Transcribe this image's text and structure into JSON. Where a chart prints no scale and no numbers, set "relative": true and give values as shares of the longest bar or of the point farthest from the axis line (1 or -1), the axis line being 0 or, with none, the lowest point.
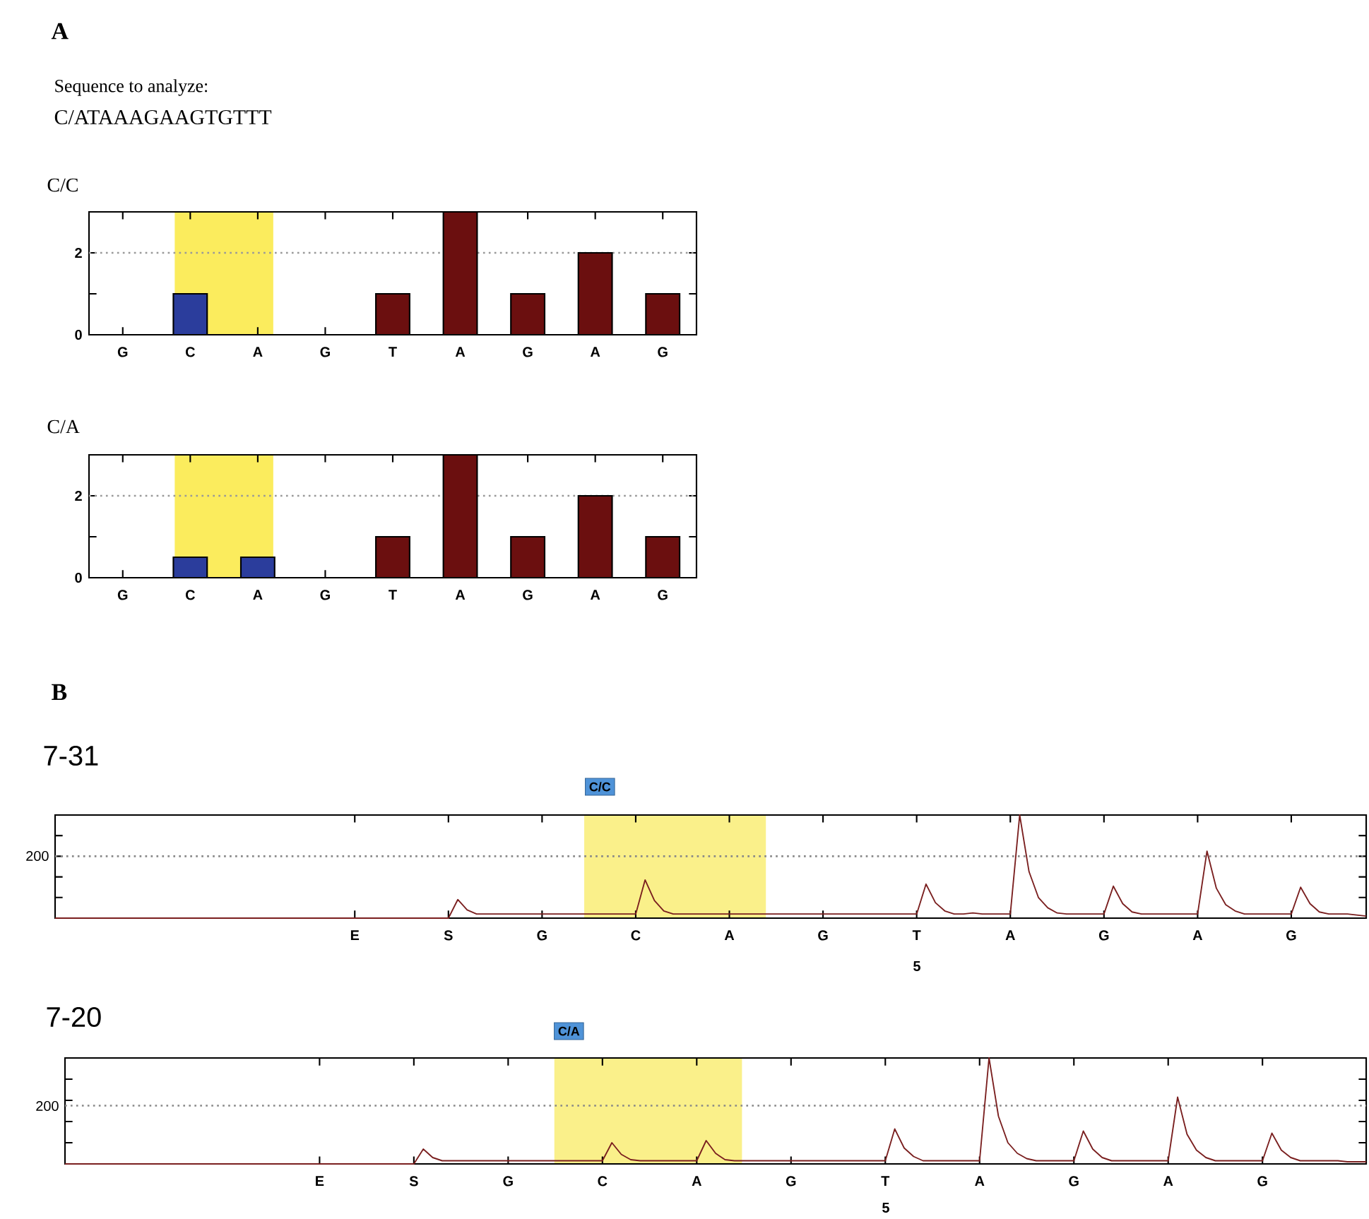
{
  "chart_data": [
    {
      "type": "bar",
      "title": "C/C",
      "annotations": [
        "A",
        "Sequence to analyze:",
        "C/ATAAAGAAGTGTTT"
      ],
      "categories": [
        "G",
        "C",
        "A",
        "G",
        "T",
        "A",
        "G",
        "A",
        "G"
      ],
      "values": [
        0,
        1,
        0,
        0,
        1,
        3,
        1,
        2,
        1
      ],
      "colors": [
        "#6b0f0f",
        "#2b3d9c",
        "#2b3d9c",
        "#6b0f0f",
        "#6b0f0f",
        "#6b0f0f",
        "#6b0f0f",
        "#6b0f0f",
        "#6b0f0f"
      ],
      "ylim": [
        0,
        3
      ],
      "yticks": [
        0,
        {
          "value": 1,
          "label": null
        },
        2
      ],
      "ref_lines": [
        {
          "axis": "y",
          "value": 2,
          "color": "#999999",
          "line_style": "dotted"
        }
      ]
    },
    {
      "type": "bar",
      "title": "C/A",
      "categories": [
        "G",
        "C",
        "A",
        "G",
        "T",
        "A",
        "G",
        "A",
        "G"
      ],
      "values": [
        0,
        0.5,
        0.5,
        0,
        1,
        3,
        1,
        2,
        1
      ],
      "colors": [
        "#6b0f0f",
        "#2b3d9c",
        "#2b3d9c",
        "#6b0f0f",
        "#6b0f0f",
        "#6b0f0f",
        "#6b0f0f",
        "#6b0f0f",
        "#6b0f0f"
      ],
      "ylim": [
        0,
        3
      ],
      "yticks": [
        0,
        {
          "value": 1,
          "label": null
        },
        2
      ],
      "ref_lines": [
        {
          "axis": "y",
          "value": 2,
          "color": "#999999",
          "line_style": "dotted"
        }
      ]
    },
    {
      "type": "line",
      "title": "7-31",
      "annotations": [
        "B",
        "C/C",
        "200",
        "5"
      ],
      "relative": true,
      "categories": [
        null,
        null,
        null,
        null,
        null,
        null,
        null,
        null,
        null,
        null,
        null,
        null,
        null,
        null,
        null,
        null,
        null,
        null,
        null,
        null,
        null,
        null,
        null,
        null,
        null,
        null,
        null,
        null,
        null,
        null,
        null,
        null,
        "E",
        null,
        null,
        null,
        null,
        null,
        null,
        null,
        null,
        null,
        "S",
        null,
        null,
        null,
        null,
        null,
        null,
        null,
        null,
        null,
        "G",
        null,
        null,
        null,
        null,
        null,
        null,
        null,
        null,
        null,
        "C",
        null,
        null,
        null,
        null,
        null,
        null,
        null,
        null,
        null,
        "A",
        null,
        null,
        null,
        null,
        null,
        null,
        null,
        null,
        null,
        "G",
        null,
        null,
        null,
        null,
        null,
        null,
        null,
        null,
        null,
        "T",
        null,
        null,
        null,
        null,
        null,
        null,
        null,
        null,
        null,
        "A",
        null,
        null,
        null,
        null,
        null,
        null,
        null,
        null,
        null,
        "G",
        null,
        null,
        null,
        null,
        null,
        null,
        null,
        null,
        null,
        "A",
        null,
        null,
        null,
        null,
        null,
        null,
        null,
        null,
        null,
        "G",
        null,
        null,
        null,
        null,
        null,
        null,
        null,
        null
      ],
      "series": [
        {
          "color": "#7a1f1f",
          "values": [
            0,
            0,
            0,
            0,
            0,
            0,
            0,
            0,
            0,
            0,
            0,
            0,
            0,
            0,
            0,
            0,
            0,
            0,
            0,
            0,
            0,
            0,
            0,
            0,
            0,
            0,
            0,
            0,
            0,
            0,
            0,
            0,
            0,
            0,
            0,
            0,
            0,
            0,
            0,
            0,
            0,
            0,
            0,
            0.18,
            0.08,
            0.04,
            0.04,
            0.04,
            0.04,
            0.04,
            0.04,
            0.04,
            0.04,
            0.04,
            0.04,
            0.04,
            0.04,
            0.04,
            0.04,
            0.04,
            0.04,
            0.04,
            0.04,
            0.37,
            0.17,
            0.07,
            0.04,
            0.04,
            0.04,
            0.04,
            0.04,
            0.04,
            0.04,
            0.04,
            0.04,
            0.04,
            0.04,
            0.04,
            0.04,
            0.04,
            0.04,
            0.04,
            0.04,
            0.04,
            0.04,
            0.04,
            0.04,
            0.04,
            0.04,
            0.04,
            0.04,
            0.04,
            0.04,
            0.33,
            0.15,
            0.07,
            0.04,
            0.04,
            0.05,
            0.04,
            0.04,
            0.04,
            0.04,
            1,
            0.45,
            0.2,
            0.1,
            0.05,
            0.04,
            0.04,
            0.04,
            0.04,
            0.04,
            0.31,
            0.14,
            0.06,
            0.04,
            0.04,
            0.04,
            0.04,
            0.04,
            0.04,
            0.04,
            0.65,
            0.29,
            0.13,
            0.07,
            0.04,
            0.04,
            0.04,
            0.04,
            0.04,
            0.04,
            0.3,
            0.14,
            0.06,
            0.04,
            0.04,
            0.04,
            0.03,
            0.02
          ]
        }
      ],
      "ref_lines": [
        {
          "axis": "y",
          "value": 0.6,
          "color": "#888888",
          "line_style": "dotted"
        }
      ]
    },
    {
      "type": "line",
      "title": "7-20",
      "annotations": [
        "C/A",
        "200",
        "5"
      ],
      "relative": true,
      "categories": [
        null,
        null,
        null,
        null,
        null,
        null,
        null,
        null,
        null,
        null,
        null,
        null,
        null,
        null,
        null,
        null,
        null,
        null,
        null,
        null,
        null,
        null,
        null,
        null,
        null,
        null,
        null,
        "E",
        null,
        null,
        null,
        null,
        null,
        null,
        null,
        null,
        null,
        "S",
        null,
        null,
        null,
        null,
        null,
        null,
        null,
        null,
        null,
        "G",
        null,
        null,
        null,
        null,
        null,
        null,
        null,
        null,
        null,
        "C",
        null,
        null,
        null,
        null,
        null,
        null,
        null,
        null,
        null,
        "A",
        null,
        null,
        null,
        null,
        null,
        null,
        null,
        null,
        null,
        "G",
        null,
        null,
        null,
        null,
        null,
        null,
        null,
        null,
        null,
        "T",
        null,
        null,
        null,
        null,
        null,
        null,
        null,
        null,
        null,
        "A",
        null,
        null,
        null,
        null,
        null,
        null,
        null,
        null,
        null,
        "G",
        null,
        null,
        null,
        null,
        null,
        null,
        null,
        null,
        null,
        "A",
        null,
        null,
        null,
        null,
        null,
        null,
        null,
        null,
        null,
        "G",
        null,
        null,
        null,
        null,
        null,
        null,
        null,
        null,
        null,
        null,
        null
      ],
      "series": [
        {
          "color": "#7a1f1f",
          "values": [
            0,
            0,
            0,
            0,
            0,
            0,
            0,
            0,
            0,
            0,
            0,
            0,
            0,
            0,
            0,
            0,
            0,
            0,
            0,
            0,
            0,
            0,
            0,
            0,
            0,
            0,
            0,
            0,
            0,
            0,
            0,
            0,
            0,
            0,
            0,
            0,
            0,
            0,
            0.14,
            0.06,
            0.03,
            0.03,
            0.03,
            0.03,
            0.03,
            0.03,
            0.03,
            0.03,
            0.03,
            0.03,
            0.03,
            0.03,
            0.03,
            0.03,
            0.03,
            0.03,
            0.03,
            0.03,
            0.2,
            0.09,
            0.04,
            0.03,
            0.03,
            0.03,
            0.03,
            0.03,
            0.03,
            0.03,
            0.22,
            0.1,
            0.04,
            0.03,
            0.03,
            0.03,
            0.03,
            0.03,
            0.03,
            0.03,
            0.03,
            0.03,
            0.03,
            0.03,
            0.03,
            0.03,
            0.03,
            0.03,
            0.03,
            0.03,
            0.33,
            0.15,
            0.07,
            0.03,
            0.03,
            0.03,
            0.03,
            0.03,
            0.03,
            0.03,
            1,
            0.45,
            0.2,
            0.1,
            0.05,
            0.03,
            0.03,
            0.03,
            0.03,
            0.03,
            0.31,
            0.14,
            0.06,
            0.03,
            0.03,
            0.03,
            0.03,
            0.03,
            0.03,
            0.03,
            0.63,
            0.28,
            0.13,
            0.06,
            0.03,
            0.03,
            0.03,
            0.03,
            0.03,
            0.03,
            0.29,
            0.13,
            0.06,
            0.03,
            0.03,
            0.03,
            0.03,
            0.03,
            0.02,
            0.02,
            0.02
          ]
        }
      ],
      "ref_lines": [
        {
          "axis": "y",
          "value": 0.55,
          "color": "#888888",
          "line_style": "dotted"
        }
      ]
    }
  ]
}
